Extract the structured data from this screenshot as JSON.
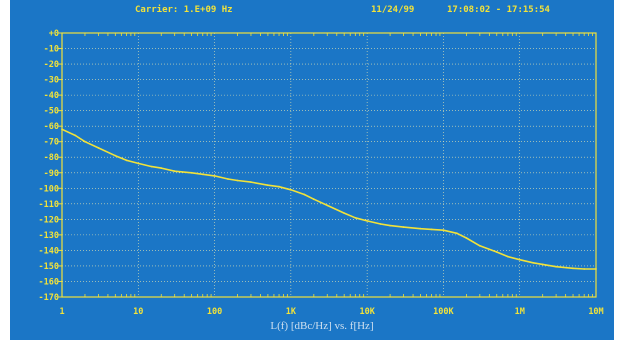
{
  "header": {
    "carrier": "Carrier: 1.E+09 Hz",
    "date": "11/24/99",
    "time_range": "17:08:02 - 17:15:54"
  },
  "chart_data": {
    "type": "line",
    "title": "",
    "xlabel": "L(f) [dBc/Hz] vs. f[Hz]",
    "ylabel": "",
    "x_scale": "log",
    "xlim": [
      1,
      10000000
    ],
    "ylim": [
      -170,
      0
    ],
    "grid": true,
    "x_ticks": [
      {
        "value": 1,
        "label": "1"
      },
      {
        "value": 10,
        "label": "10"
      },
      {
        "value": 100,
        "label": "100"
      },
      {
        "value": 1000,
        "label": "1K"
      },
      {
        "value": 10000,
        "label": "10K"
      },
      {
        "value": 100000,
        "label": "100K"
      },
      {
        "value": 1000000,
        "label": "1M"
      },
      {
        "value": 10000000,
        "label": "10M"
      }
    ],
    "y_ticks": [
      {
        "value": 0,
        "label": "+0"
      },
      {
        "value": -10,
        "label": "-10"
      },
      {
        "value": -20,
        "label": "-20"
      },
      {
        "value": -30,
        "label": "-30"
      },
      {
        "value": -40,
        "label": "-40"
      },
      {
        "value": -50,
        "label": "-50"
      },
      {
        "value": -60,
        "label": "-60"
      },
      {
        "value": -70,
        "label": "-70"
      },
      {
        "value": -80,
        "label": "-80"
      },
      {
        "value": -90,
        "label": "-90"
      },
      {
        "value": -100,
        "label": "-100"
      },
      {
        "value": -110,
        "label": "-110"
      },
      {
        "value": -120,
        "label": "-120"
      },
      {
        "value": -130,
        "label": "-130"
      },
      {
        "value": -140,
        "label": "-140"
      },
      {
        "value": -150,
        "label": "-150"
      },
      {
        "value": -160,
        "label": "-160"
      },
      {
        "value": -170,
        "label": "-170"
      }
    ],
    "series": [
      {
        "x": [
          1,
          1.5,
          2,
          3,
          5,
          7,
          10,
          15,
          20,
          30,
          50,
          70,
          100,
          150,
          200,
          300,
          500,
          700,
          1000,
          1500,
          2000,
          3000,
          5000,
          7000,
          10000,
          15000,
          20000,
          30000,
          50000,
          70000,
          100000,
          150000,
          200000,
          300000,
          500000,
          700000,
          1000000,
          1500000,
          2000000,
          3000000,
          5000000,
          7000000,
          10000000
        ],
        "y": [
          -62,
          -66,
          -70,
          -74,
          -79,
          -82,
          -84,
          -86,
          -87,
          -89,
          -90,
          -91,
          -92,
          -94,
          -95,
          -96,
          -98,
          -99,
          -101,
          -104,
          -107,
          -111,
          -116,
          -119,
          -121,
          -123,
          -124,
          -125,
          -126,
          -126.5,
          -127,
          -129,
          -132,
          -137,
          -141,
          -144,
          -146,
          -148,
          -149,
          -150.5,
          -151.5,
          -152,
          -152
        ]
      }
    ]
  },
  "colors": {
    "background": "#1b76c6",
    "trace": "#f1e23a",
    "grid": "#e8e6b0",
    "frame": "#f1e23a"
  }
}
